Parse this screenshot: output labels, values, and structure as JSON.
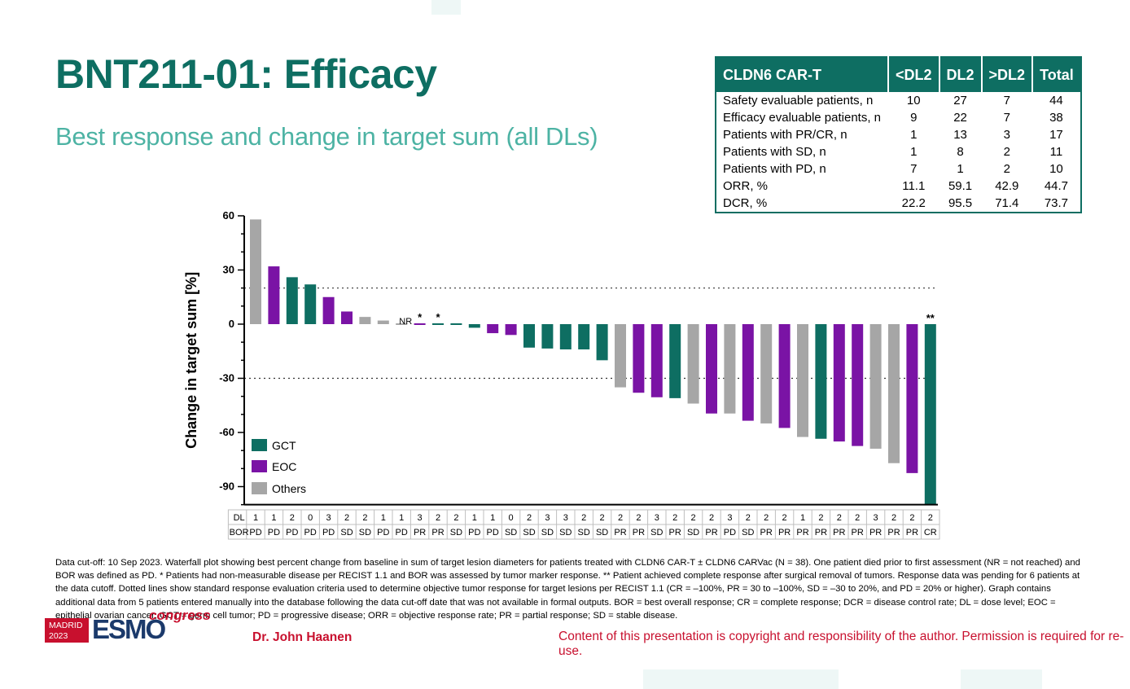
{
  "title": "BNT211-01: Efficacy",
  "subtitle": "Best response and change in target sum (all DLs)",
  "table": {
    "headers": [
      "CLDN6 CAR-T",
      "<DL2",
      "DL2",
      ">DL2",
      "Total"
    ],
    "rows": [
      [
        "Safety evaluable patients, n",
        "10",
        "27",
        "7",
        "44"
      ],
      [
        "Efficacy evaluable patients, n",
        "9",
        "22",
        "7",
        "38"
      ],
      [
        "Patients with PR/CR, n",
        "1",
        "13",
        "3",
        "17"
      ],
      [
        "Patients with SD, n",
        "1",
        "8",
        "2",
        "11"
      ],
      [
        "Patients with PD, n",
        "7",
        "1",
        "2",
        "10"
      ],
      [
        "ORR, %",
        "11.1",
        "59.1",
        "42.9",
        "44.7"
      ],
      [
        "DCR, %",
        "22.2",
        "95.5",
        "71.4",
        "73.7"
      ]
    ]
  },
  "chart_data": {
    "type": "bar",
    "ylabel": "Change in target sum [%]",
    "ylim": [
      -100,
      60
    ],
    "yticks": [
      60,
      30,
      0,
      -30,
      -60,
      -90
    ],
    "reference_lines": [
      20,
      -30
    ],
    "colors": {
      "GCT": "#0e6e62",
      "EOC": "#7a13a5",
      "Others": "#a6a6a6"
    },
    "legend": [
      "GCT",
      "EOC",
      "Others"
    ],
    "legend_position": "bottom-left",
    "row_headers": [
      "DL",
      "BOR"
    ],
    "values": [
      58,
      32,
      26,
      22,
      15,
      7,
      4,
      2,
      0,
      0.5,
      0.5,
      -0.5,
      -2,
      -5,
      -6,
      -13,
      -13.5,
      -14,
      -14,
      -20,
      -35,
      -38,
      -40.5,
      -41,
      -44,
      -49.5,
      -49.5,
      -53.5,
      -55,
      -57.5,
      -62.5,
      -63.5,
      -65,
      -67.5,
      -69,
      -77,
      -82.5,
      -100
    ],
    "groups": [
      "Others",
      "EOC",
      "GCT",
      "GCT",
      "EOC",
      "EOC",
      "Others",
      "Others",
      "Others",
      "EOC",
      "GCT",
      "GCT",
      "GCT",
      "EOC",
      "EOC",
      "GCT",
      "GCT",
      "GCT",
      "GCT",
      "GCT",
      "Others",
      "EOC",
      "EOC",
      "GCT",
      "Others",
      "EOC",
      "Others",
      "EOC",
      "Others",
      "EOC",
      "Others",
      "GCT",
      "EOC",
      "EOC",
      "Others",
      "Others",
      "EOC",
      "GCT"
    ],
    "dl": [
      "1",
      "1",
      "2",
      "0",
      "3",
      "2",
      "2",
      "1",
      "1",
      "3",
      "2",
      "2",
      "1",
      "1",
      "0",
      "2",
      "3",
      "3",
      "2",
      "2",
      "2",
      "2",
      "3",
      "2",
      "2",
      "2",
      "3",
      "2",
      "2",
      "2",
      "1",
      "2",
      "2",
      "2",
      "3",
      "2",
      "2",
      "2"
    ],
    "bor": [
      "PD",
      "PD",
      "PD",
      "PD",
      "PD",
      "SD",
      "SD",
      "PD",
      "PD",
      "PR",
      "PR",
      "SD",
      "PD",
      "PD",
      "SD",
      "SD",
      "SD",
      "SD",
      "SD",
      "SD",
      "PR",
      "PR",
      "SD",
      "PR",
      "SD",
      "PR",
      "PD",
      "SD",
      "PR",
      "PR",
      "PR",
      "PR",
      "PR",
      "PR",
      "PR",
      "PR",
      "PR",
      "CR"
    ],
    "annotations": [
      {
        "index": 8,
        "text": "NR"
      },
      {
        "index": 9,
        "text": "*"
      },
      {
        "index": 10,
        "text": "*"
      },
      {
        "index": 37,
        "text": "**"
      }
    ]
  },
  "footnote": "Data cut-off: 10 Sep 2023. Waterfall plot showing best percent change from baseline in sum of target lesion diameters for patients treated with CLDN6 CAR-T ± CLDN6 CARVac (N = 38). One patient died prior to first assessment (NR = not reached) and BOR was defined as PD. * Patients had non-measurable disease per RECIST 1.1 and BOR was assessed by tumor marker response. ** Patient achieved complete response after surgical removal of tumors. Response data was pending for 6 patients at the data cutoff. Dotted lines show standard response evaluation criteria used to determine objective tumor response for target lesions per RECIST 1.1 (CR = –100%, PR = 30 to –100%, SD = –30 to 20%, and PD = 20% or higher). Graph contains additional data from 5 patients entered manually into the database following the data cut-off date that was not available in formal outputs. BOR = best overall response; CR = complete response; DCR = disease control rate; DL = dose level; EOC = epithelial ovarian cancer; GCT = germ cell tumor; PD = progressive disease; ORR = objective response rate; PR = partial response; SD = stable disease.",
  "logo": {
    "madrid": "MADRID",
    "year": "2023",
    "esmo": "ESMO",
    "congress": "congress"
  },
  "presenter": "Dr. John Haanen",
  "copyright": "Content of this presentation is copyright and responsibility of the author. Permission is required for re-use."
}
